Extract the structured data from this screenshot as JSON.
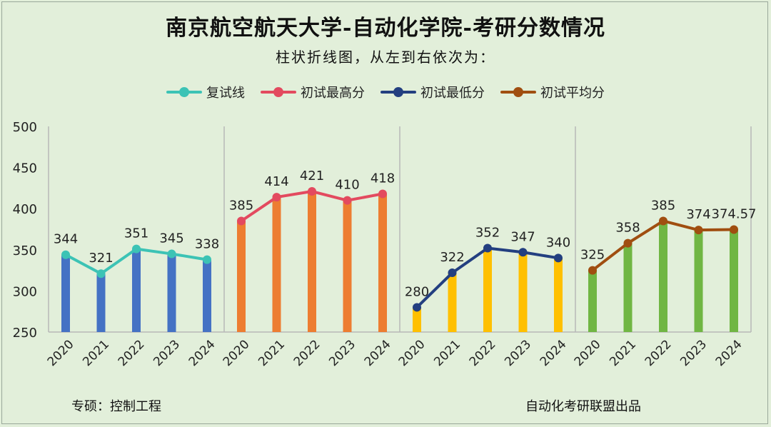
{
  "title": "南京航空航天大学-自动化学院-考研分数情况",
  "subtitle": "柱状折线图，从左到右依次为：",
  "footer": {
    "left": "专硕：控制工程",
    "right": "自动化考研联盟出品"
  },
  "legend": [
    {
      "label": "复试线",
      "color": "#3cc3b5"
    },
    {
      "label": "初试最高分",
      "color": "#e34a5f"
    },
    {
      "label": "初试最低分",
      "color": "#233f80"
    },
    {
      "label": "初试平均分",
      "color": "#a04e10"
    }
  ],
  "chart_data": {
    "type": "bar",
    "title": "南京航空航天大学-自动化学院-考研分数情况",
    "ylim": [
      250,
      500
    ],
    "yticks": [
      250,
      300,
      350,
      400,
      450,
      500
    ],
    "grid": false,
    "groups": [
      {
        "name": "复试线",
        "categories": [
          "2020",
          "2021",
          "2022",
          "2023",
          "2024"
        ],
        "values": [
          344,
          321,
          351,
          345,
          338
        ],
        "labels": [
          "344",
          "321",
          "351",
          "345",
          "338"
        ],
        "bar_color": "#4472c4",
        "line_color": "#3cc3b5"
      },
      {
        "name": "初试最高分",
        "categories": [
          "2020",
          "2021",
          "2022",
          "2023",
          "2024"
        ],
        "values": [
          385,
          414,
          421,
          410,
          418
        ],
        "labels": [
          "385",
          "414",
          "421",
          "410",
          "418"
        ],
        "bar_color": "#ed7d31",
        "line_color": "#e34a5f"
      },
      {
        "name": "初试最低分",
        "categories": [
          "2020",
          "2021",
          "2022",
          "2023",
          "2024"
        ],
        "values": [
          280,
          322,
          352,
          347,
          340
        ],
        "labels": [
          "280",
          "322",
          "352",
          "347",
          "340"
        ],
        "bar_color": "#ffc000",
        "line_color": "#233f80"
      },
      {
        "name": "初试平均分",
        "categories": [
          "2020",
          "2021",
          "2022",
          "2023",
          "2024"
        ],
        "values": [
          325,
          358,
          385,
          374,
          374.57
        ],
        "labels": [
          "325",
          "358",
          "385",
          "374",
          "374.57"
        ],
        "bar_color": "#70b643",
        "line_color": "#a04e10"
      }
    ]
  }
}
